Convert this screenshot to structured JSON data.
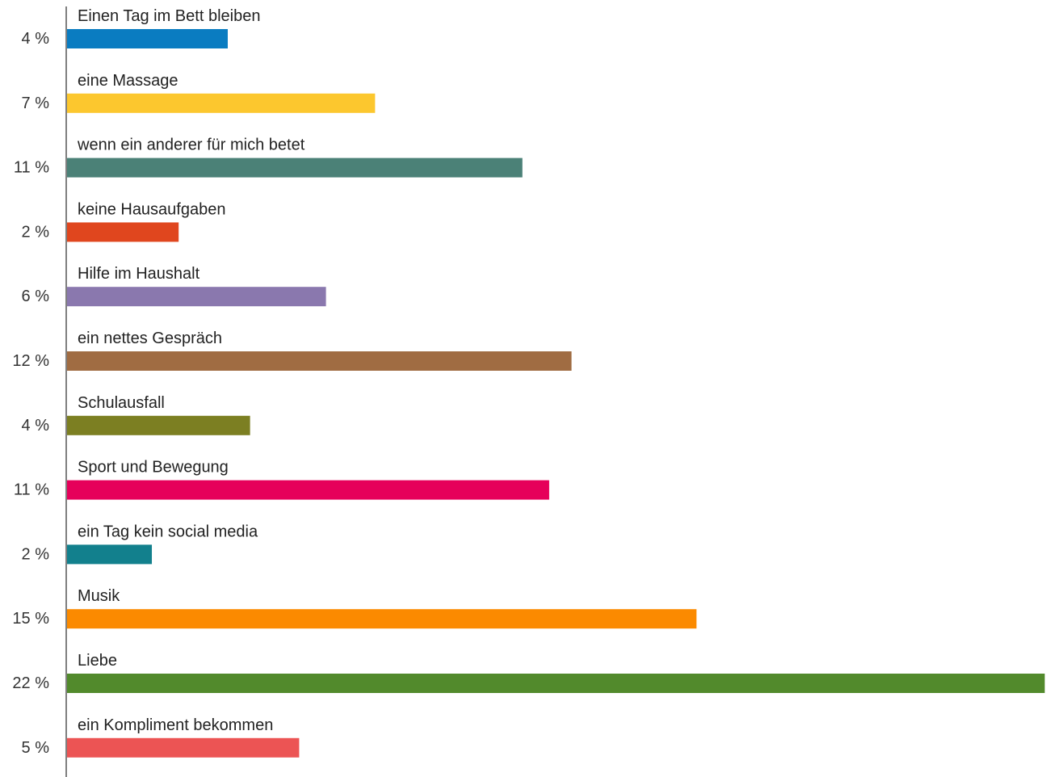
{
  "chart_data": {
    "type": "bar",
    "orientation": "horizontal",
    "categories": [
      "Einen Tag im Bett bleiben",
      "eine Massage",
      "wenn ein anderer für mich betet",
      "keine Hausaufgaben",
      "Hilfe im Haushalt",
      "ein nettes Gespräch",
      "Schulausfall",
      "Sport und Bewegung",
      "ein Tag kein social media",
      "Musik",
      "Liebe",
      "ein Kompliment bekommen"
    ],
    "values": [
      4,
      7,
      11,
      2,
      6,
      12,
      4,
      11,
      2,
      15,
      22,
      5
    ],
    "value_labels": [
      "4 %",
      "7 %",
      "11 %",
      "2 %",
      "6 %",
      "12 %",
      "4 %",
      "11 %",
      "2 %",
      "15 %",
      "22 %",
      "5 %"
    ],
    "colors": [
      "#0a7cc1",
      "#fcc72e",
      "#4b8177",
      "#e0461e",
      "#8a78ae",
      "#a06c42",
      "#7c7f22",
      "#e6005a",
      "#12808d",
      "#fb8a00",
      "#528a2c",
      "#ec5454"
    ],
    "bar_lengths": [
      3.6,
      6.9,
      10.2,
      2.5,
      5.8,
      11.3,
      4.1,
      10.8,
      1.9,
      14.1,
      21.9,
      5.2
    ],
    "xlim": [
      0,
      22
    ],
    "grid": false,
    "legend": "none"
  }
}
